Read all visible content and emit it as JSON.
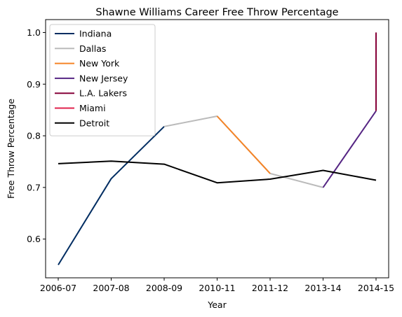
{
  "chart_data": {
    "type": "line",
    "title": "Shawne Williams Career Free Throw Percentage",
    "xlabel": "Year",
    "ylabel": "Free Throw Percentage",
    "categories": [
      "2006-07",
      "2007-08",
      "2008-09",
      "2010-11",
      "2011-12",
      "2013-14",
      "2014-15"
    ],
    "ylim": [
      0.525,
      1.025
    ],
    "yticks": [
      "0.6",
      "0.7",
      "0.8",
      "0.9",
      "1.0"
    ],
    "ytick_values": [
      0.6,
      0.7,
      0.8,
      0.9,
      1.0
    ],
    "grid": false,
    "legend_position": "top-left",
    "series": [
      {
        "name": "Indiana",
        "color": "#002d62",
        "points": [
          [
            "2006-07",
            0.55
          ],
          [
            "2007-08",
            0.717
          ],
          [
            "2008-09",
            0.818
          ]
        ]
      },
      {
        "name": "Dallas",
        "color": "#bbbbbb",
        "points": [
          [
            "2008-09",
            0.818
          ],
          [
            "2010-11",
            0.838
          ],
          [
            "2011-12",
            0.727
          ],
          [
            "2013-14",
            0.7
          ]
        ]
      },
      {
        "name": "New York",
        "color": "#f58426",
        "points": [
          [
            "2010-11",
            0.838
          ],
          [
            "2011-12",
            0.727
          ]
        ]
      },
      {
        "name": "New Jersey",
        "color": "#552583",
        "points": [
          [
            "2013-14",
            0.7
          ],
          [
            "2014-15",
            0.848
          ]
        ]
      },
      {
        "name": "L.A. Lakers",
        "color": "#860038",
        "points": [
          [
            "2014-15",
            0.848
          ],
          [
            "2014-15",
            1.0
          ]
        ]
      },
      {
        "name": "Miami",
        "color": "#e0224c",
        "points": []
      },
      {
        "name": "Detroit",
        "color": "#000000",
        "points": [
          [
            "2006-07",
            0.746
          ],
          [
            "2007-08",
            0.751
          ],
          [
            "2008-09",
            0.745
          ],
          [
            "2010-11",
            0.709
          ],
          [
            "2011-12",
            0.716
          ],
          [
            "2013-14",
            0.733
          ],
          [
            "2014-15",
            0.714
          ]
        ]
      }
    ]
  }
}
